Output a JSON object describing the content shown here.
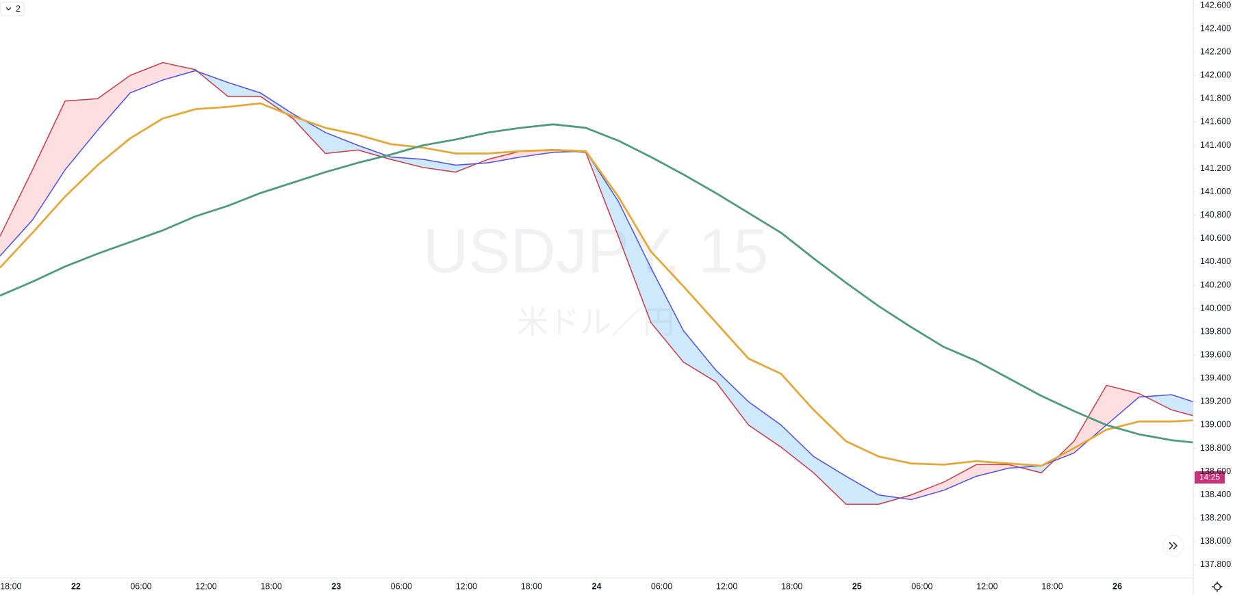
{
  "chart_data": {
    "type": "line",
    "watermark": "USDJPY, 15",
    "watermark_subtitle": "米ドル／円",
    "indicator_count": "2",
    "countdown": "14:25",
    "x": [
      -7,
      -4,
      -1,
      2,
      5,
      8,
      11,
      14,
      17,
      20,
      23,
      26,
      29,
      32,
      35,
      38,
      41,
      44,
      47,
      50,
      53,
      56,
      59,
      62,
      65,
      68,
      71,
      74,
      77,
      80,
      83,
      86,
      89,
      92,
      95,
      98,
      101,
      103
    ],
    "xlim": [
      -7,
      103
    ],
    "xticks": [
      {
        "value": -6,
        "label": "18:00"
      },
      {
        "value": 0,
        "label": "22"
      },
      {
        "value": 6,
        "label": "06:00"
      },
      {
        "value": 12,
        "label": "12:00"
      },
      {
        "value": 18,
        "label": "18:00"
      },
      {
        "value": 24,
        "label": "23"
      },
      {
        "value": 30,
        "label": "06:00"
      },
      {
        "value": 36,
        "label": "12:00"
      },
      {
        "value": 42,
        "label": "18:00"
      },
      {
        "value": 48,
        "label": "24"
      },
      {
        "value": 54,
        "label": "06:00"
      },
      {
        "value": 60,
        "label": "12:00"
      },
      {
        "value": 66,
        "label": "18:00"
      },
      {
        "value": 72,
        "label": "25"
      },
      {
        "value": 78,
        "label": "06:00"
      },
      {
        "value": 84,
        "label": "12:00"
      },
      {
        "value": 90,
        "label": "18:00"
      },
      {
        "value": 96,
        "label": "26"
      }
    ],
    "ylim": [
      137.688,
      142.647
    ],
    "yticks": [
      {
        "value": 137.8,
        "label": "137.800"
      },
      {
        "value": 138.0,
        "label": "138.000"
      },
      {
        "value": 138.2,
        "label": "138.200"
      },
      {
        "value": 138.4,
        "label": "138.400"
      },
      {
        "value": 138.6,
        "label": "138.600"
      },
      {
        "value": 138.8,
        "label": "138.800"
      },
      {
        "value": 139.0,
        "label": "139.000"
      },
      {
        "value": 139.2,
        "label": "139.200"
      },
      {
        "value": 139.4,
        "label": "139.400"
      },
      {
        "value": 139.6,
        "label": "139.600"
      },
      {
        "value": 139.8,
        "label": "139.800"
      },
      {
        "value": 140.0,
        "label": "140.000"
      },
      {
        "value": 140.2,
        "label": "140.200"
      },
      {
        "value": 140.4,
        "label": "140.400"
      },
      {
        "value": 140.6,
        "label": "140.600"
      },
      {
        "value": 140.8,
        "label": "140.800"
      },
      {
        "value": 141.0,
        "label": "141.000"
      },
      {
        "value": 141.2,
        "label": "141.200"
      },
      {
        "value": 141.4,
        "label": "141.400"
      },
      {
        "value": 141.6,
        "label": "141.600"
      },
      {
        "value": 141.8,
        "label": "141.800"
      },
      {
        "value": 142.0,
        "label": "142.000"
      },
      {
        "value": 142.2,
        "label": "142.200"
      },
      {
        "value": 142.4,
        "label": "142.400"
      },
      {
        "value": 142.6,
        "label": "142.600"
      }
    ],
    "fill_colors": {
      "above": "rgba(242,54,69,0.16)",
      "below": "rgba(33,150,243,0.22)"
    },
    "series": [
      {
        "color": "#c8434f",
        "values": [
          140.62,
          141.19,
          141.78,
          141.8,
          142.0,
          142.11,
          142.05,
          141.82,
          141.82,
          141.63,
          141.33,
          141.36,
          141.28,
          141.21,
          141.17,
          141.28,
          141.35,
          141.36,
          141.34,
          140.62,
          139.88,
          139.54,
          139.37,
          139.0,
          138.81,
          138.59,
          138.32,
          138.32,
          138.4,
          138.51,
          138.66,
          138.66,
          138.59,
          138.86,
          139.34,
          139.27,
          139.13,
          139.08
        ]
      },
      {
        "color": "#5658dc",
        "values": [
          140.45,
          140.76,
          141.19,
          141.53,
          141.85,
          141.96,
          142.04,
          141.94,
          141.85,
          141.67,
          141.51,
          141.4,
          141.3,
          141.28,
          141.23,
          141.25,
          141.3,
          141.34,
          141.35,
          140.92,
          140.35,
          139.81,
          139.47,
          139.2,
          139.0,
          138.73,
          138.56,
          138.4,
          138.36,
          138.44,
          138.56,
          138.63,
          138.65,
          138.76,
          139.0,
          139.24,
          139.26,
          139.2
        ]
      },
      {
        "color": "#e3a73a",
        "values": [
          140.35,
          140.65,
          140.96,
          141.23,
          141.46,
          141.63,
          141.71,
          141.73,
          141.76,
          141.65,
          141.55,
          141.49,
          141.41,
          141.38,
          141.33,
          141.33,
          141.35,
          141.36,
          141.35,
          140.96,
          140.49,
          140.19,
          139.88,
          139.57,
          139.44,
          139.13,
          138.86,
          138.73,
          138.67,
          138.66,
          138.69,
          138.67,
          138.65,
          138.8,
          138.96,
          139.03,
          139.03,
          139.04
        ]
      },
      {
        "color": "#4f9a7e",
        "values": [
          140.11,
          140.23,
          140.36,
          140.47,
          140.57,
          140.67,
          140.79,
          140.88,
          140.99,
          141.08,
          141.17,
          141.25,
          141.32,
          141.4,
          141.45,
          141.51,
          141.55,
          141.58,
          141.55,
          141.44,
          141.3,
          141.15,
          140.99,
          140.82,
          140.65,
          140.43,
          140.22,
          140.02,
          139.84,
          139.67,
          139.55,
          139.4,
          139.25,
          139.12,
          139.0,
          138.92,
          138.87,
          138.85
        ]
      }
    ]
  }
}
